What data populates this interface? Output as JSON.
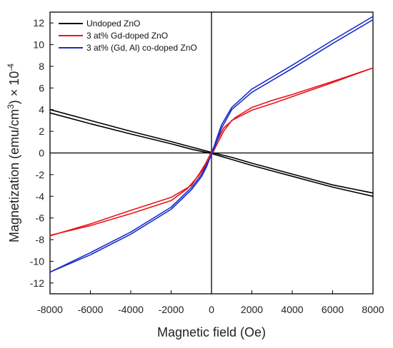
{
  "chart_data": {
    "type": "line",
    "xlabel": "Magnetic field (Oe)",
    "ylabel_main": "Magnetization (emu/cm",
    "ylabel_sup1": "3",
    "ylabel_mid": ") × 10",
    "ylabel_sup2": "-4",
    "xlim": [
      -8000,
      8000
    ],
    "ylim": [
      -13,
      13
    ],
    "xticks": [
      -8000,
      -6000,
      -4000,
      -2000,
      0,
      2000,
      4000,
      6000,
      8000
    ],
    "yticks": [
      -12,
      -10,
      -8,
      -6,
      -4,
      -2,
      0,
      2,
      4,
      6,
      8,
      10,
      12
    ],
    "legend_position": "top-left",
    "series": [
      {
        "name": "Undoped ZnO",
        "color": "#000000",
        "branches": [
          {
            "x": [
              -8000,
              -6000,
              -4000,
              -2000,
              -1000,
              0,
              1000,
              2000,
              4000,
              6000,
              8000
            ],
            "y": [
              4.0,
              3.0,
              2.0,
              1.05,
              0.55,
              0.05,
              -0.4,
              -0.95,
              -1.95,
              -2.95,
              -3.7
            ]
          },
          {
            "x": [
              -8000,
              -6000,
              -4000,
              -2000,
              -1000,
              0,
              1000,
              2000,
              4000,
              6000,
              8000
            ],
            "y": [
              3.7,
              2.7,
              1.75,
              0.85,
              0.35,
              -0.05,
              -0.6,
              -1.15,
              -2.15,
              -3.15,
              -4.0
            ]
          }
        ]
      },
      {
        "name": "3 at% Gd-doped ZnO",
        "color": "#e8141a",
        "branches": [
          {
            "x": [
              -8000,
              -6000,
              -4000,
              -2000,
              -1200,
              -600,
              -300,
              0,
              300,
              600,
              1000,
              2000,
              3000,
              4000,
              6000,
              8000
            ],
            "y": [
              -7.6,
              -6.7,
              -5.6,
              -4.4,
              -3.3,
              -2.0,
              -1.2,
              -0.2,
              0.9,
              2.0,
              3.0,
              3.95,
              4.55,
              5.2,
              6.5,
              7.85
            ]
          },
          {
            "x": [
              -8000,
              -6000,
              -4000,
              -2000,
              -1000,
              -600,
              -300,
              0,
              300,
              600,
              1200,
              2000,
              3000,
              4000,
              6000,
              8000
            ],
            "y": [
              -7.65,
              -6.55,
              -5.3,
              -4.1,
              -3.0,
              -1.9,
              -1.0,
              0.1,
              1.2,
              2.3,
              3.3,
              4.2,
              4.85,
              5.4,
              6.6,
              7.85
            ]
          }
        ]
      },
      {
        "name": "3 at% (Gd, Al) co-doped ZnO",
        "color": "#1a2ec8",
        "branches": [
          {
            "x": [
              -8000,
              -6000,
              -4000,
              -2000,
              -1000,
              -500,
              -250,
              0,
              250,
              500,
              1000,
              2000,
              3000,
              4000,
              6000,
              8000
            ],
            "y": [
              -11.0,
              -9.2,
              -7.3,
              -5.0,
              -3.2,
              -2.0,
              -1.1,
              -0.2,
              1.0,
              2.3,
              4.0,
              5.6,
              6.7,
              7.8,
              10.1,
              12.3
            ]
          },
          {
            "x": [
              -8000,
              -6000,
              -4000,
              -2000,
              -1000,
              -500,
              -250,
              0,
              250,
              500,
              1000,
              2000,
              3000,
              4000,
              6000,
              8000
            ],
            "y": [
              -11.0,
              -9.4,
              -7.5,
              -5.2,
              -3.4,
              -2.2,
              -1.3,
              -0.1,
              1.3,
              2.6,
              4.2,
              5.9,
              7.0,
              8.1,
              10.4,
              12.6
            ]
          }
        ]
      }
    ]
  }
}
